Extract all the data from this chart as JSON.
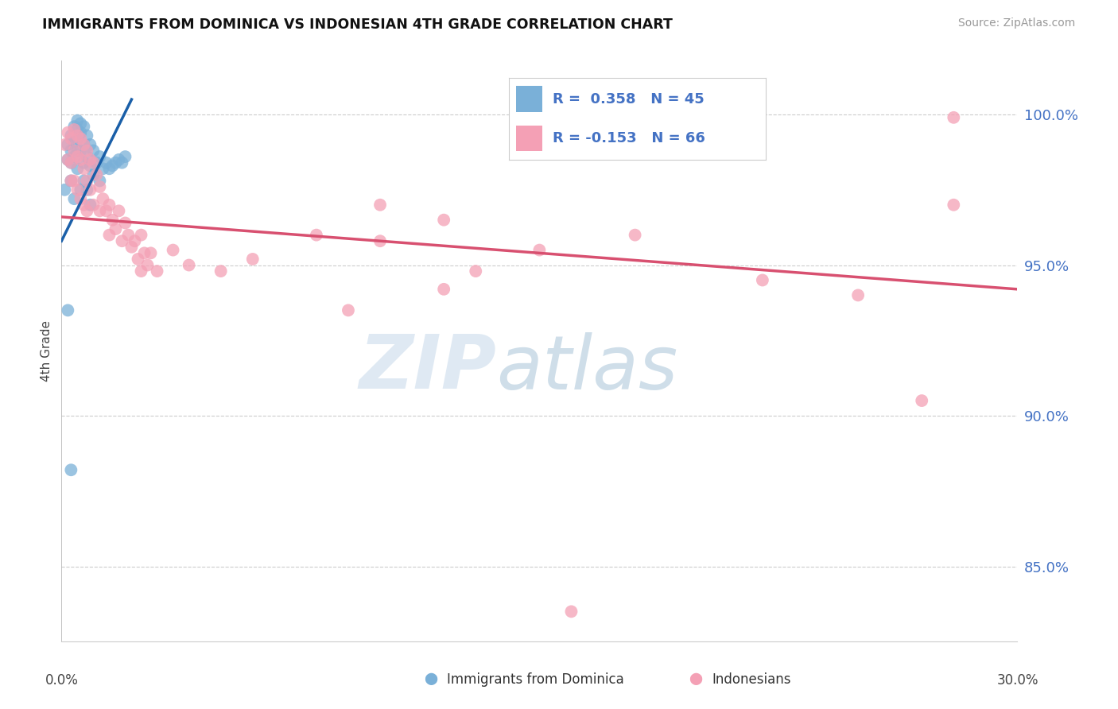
{
  "title": "IMMIGRANTS FROM DOMINICA VS INDONESIAN 4TH GRADE CORRELATION CHART",
  "source": "Source: ZipAtlas.com",
  "ylabel": "4th Grade",
  "ytick_labels": [
    "85.0%",
    "90.0%",
    "95.0%",
    "100.0%"
  ],
  "ytick_values": [
    0.85,
    0.9,
    0.95,
    1.0
  ],
  "xlim": [
    0.0,
    0.3
  ],
  "ylim": [
    0.825,
    1.018
  ],
  "R_blue": 0.358,
  "N_blue": 45,
  "R_pink": -0.153,
  "N_pink": 66,
  "color_blue": "#7ab0d8",
  "color_pink": "#f4a0b5",
  "line_blue": "#1a5fa8",
  "line_pink": "#d85070",
  "watermark_zip": "ZIP",
  "watermark_atlas": "atlas",
  "legend_label_blue": "Immigrants from Dominica",
  "legend_label_pink": "Indonesians",
  "blue_line_x0": 0.0,
  "blue_line_x1": 0.022,
  "blue_line_y0": 0.958,
  "blue_line_y1": 1.005,
  "pink_line_x0": 0.0,
  "pink_line_x1": 0.3,
  "pink_line_y0": 0.966,
  "pink_line_y1": 0.942,
  "blue_x": [
    0.001,
    0.002,
    0.002,
    0.003,
    0.003,
    0.003,
    0.003,
    0.004,
    0.004,
    0.004,
    0.004,
    0.005,
    0.005,
    0.005,
    0.005,
    0.005,
    0.006,
    0.006,
    0.006,
    0.006,
    0.007,
    0.007,
    0.007,
    0.007,
    0.008,
    0.008,
    0.008,
    0.009,
    0.009,
    0.009,
    0.01,
    0.01,
    0.011,
    0.012,
    0.012,
    0.013,
    0.014,
    0.015,
    0.016,
    0.017,
    0.018,
    0.019,
    0.02,
    0.002,
    0.003
  ],
  "blue_y": [
    0.975,
    0.99,
    0.985,
    0.993,
    0.988,
    0.984,
    0.978,
    0.996,
    0.991,
    0.986,
    0.972,
    0.998,
    0.995,
    0.992,
    0.988,
    0.982,
    0.997,
    0.994,
    0.988,
    0.975,
    0.996,
    0.99,
    0.984,
    0.978,
    0.993,
    0.986,
    0.975,
    0.99,
    0.983,
    0.97,
    0.988,
    0.98,
    0.984,
    0.986,
    0.978,
    0.982,
    0.984,
    0.982,
    0.983,
    0.984,
    0.985,
    0.984,
    0.986,
    0.935,
    0.882
  ],
  "pink_x": [
    0.001,
    0.002,
    0.002,
    0.003,
    0.003,
    0.003,
    0.004,
    0.004,
    0.004,
    0.005,
    0.005,
    0.005,
    0.006,
    0.006,
    0.006,
    0.007,
    0.007,
    0.007,
    0.008,
    0.008,
    0.008,
    0.009,
    0.009,
    0.01,
    0.01,
    0.011,
    0.012,
    0.012,
    0.013,
    0.014,
    0.015,
    0.015,
    0.016,
    0.017,
    0.018,
    0.019,
    0.02,
    0.021,
    0.022,
    0.023,
    0.024,
    0.025,
    0.025,
    0.026,
    0.027,
    0.028,
    0.03,
    0.035,
    0.04,
    0.05,
    0.06,
    0.08,
    0.1,
    0.1,
    0.12,
    0.13,
    0.15,
    0.18,
    0.22,
    0.25,
    0.28,
    0.28,
    0.12,
    0.09,
    0.27,
    0.16
  ],
  "pink_y": [
    0.99,
    0.994,
    0.985,
    0.992,
    0.984,
    0.978,
    0.995,
    0.988,
    0.978,
    0.993,
    0.986,
    0.975,
    0.992,
    0.985,
    0.972,
    0.99,
    0.982,
    0.97,
    0.988,
    0.978,
    0.968,
    0.985,
    0.975,
    0.984,
    0.97,
    0.98,
    0.976,
    0.968,
    0.972,
    0.968,
    0.97,
    0.96,
    0.965,
    0.962,
    0.968,
    0.958,
    0.964,
    0.96,
    0.956,
    0.958,
    0.952,
    0.96,
    0.948,
    0.954,
    0.95,
    0.954,
    0.948,
    0.955,
    0.95,
    0.948,
    0.952,
    0.96,
    0.97,
    0.958,
    0.965,
    0.948,
    0.955,
    0.96,
    0.945,
    0.94,
    0.999,
    0.97,
    0.942,
    0.935,
    0.905,
    0.835
  ]
}
